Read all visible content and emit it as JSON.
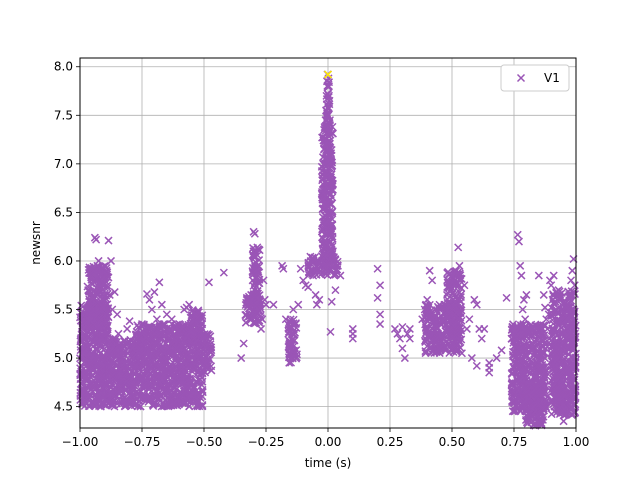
{
  "chart_data": {
    "type": "scatter",
    "title": "",
    "xlabel": "time (s)",
    "ylabel": "newsnr",
    "xlim": [
      -1.0,
      1.0
    ],
    "ylim": [
      4.28,
      8.09
    ],
    "xticks": [
      -1.0,
      -0.75,
      -0.5,
      -0.25,
      0.0,
      0.25,
      0.5,
      0.75,
      1.0
    ],
    "xtick_labels": [
      "−1.00",
      "−0.75",
      "−0.50",
      "−0.25",
      "0.00",
      "0.25",
      "0.50",
      "0.75",
      "1.00"
    ],
    "yticks": [
      4.5,
      5.0,
      5.5,
      6.0,
      6.5,
      7.0,
      7.5,
      8.0
    ],
    "ytick_labels": [
      "4.5",
      "5.0",
      "5.5",
      "6.0",
      "6.5",
      "7.0",
      "7.5",
      "8.0"
    ],
    "grid": true,
    "legend_position": "top-right",
    "marker": "x",
    "series": [
      {
        "name": "V1",
        "color": "#9a55b6",
        "points": [
          [
            -1.0,
            5.42
          ],
          [
            -0.99,
            5.3
          ],
          [
            -0.98,
            5.15
          ],
          [
            -0.975,
            4.8
          ],
          [
            -0.97,
            5.5
          ],
          [
            -0.965,
            5.05
          ],
          [
            -0.96,
            4.7
          ],
          [
            -0.955,
            5.85
          ],
          [
            -0.95,
            5.6
          ],
          [
            -0.945,
            5.9
          ],
          [
            -0.94,
            6.24
          ],
          [
            -0.935,
            6.22
          ],
          [
            -0.93,
            5.95
          ],
          [
            -0.925,
            6.0
          ],
          [
            -0.92,
            5.7
          ],
          [
            -0.915,
            5.4
          ],
          [
            -0.91,
            5.2
          ],
          [
            -0.905,
            5.77
          ],
          [
            -0.9,
            5.65
          ],
          [
            -0.895,
            5.45
          ],
          [
            -0.89,
            5.25
          ],
          [
            -0.885,
            6.21
          ],
          [
            -0.88,
            5.65
          ],
          [
            -0.875,
            6.0
          ],
          [
            -0.87,
            5.5
          ],
          [
            -0.865,
            5.2
          ],
          [
            -0.86,
            5.68
          ],
          [
            -0.855,
            5.1
          ],
          [
            -0.85,
            5.45
          ],
          [
            -0.845,
            5.25
          ],
          [
            -0.84,
            5.05
          ],
          [
            -0.83,
            4.9
          ],
          [
            -0.82,
            4.95
          ],
          [
            -0.81,
            5.3
          ],
          [
            -0.8,
            5.38
          ],
          [
            -0.79,
            5.1
          ],
          [
            -0.78,
            4.85
          ],
          [
            -0.77,
            5.2
          ],
          [
            -0.76,
            4.9
          ],
          [
            -0.75,
            5.35
          ],
          [
            -0.74,
            5.3
          ],
          [
            -0.73,
            5.66
          ],
          [
            -0.72,
            5.6
          ],
          [
            -0.71,
            5.5
          ],
          [
            -0.7,
            5.68
          ],
          [
            -0.69,
            5.4
          ],
          [
            -0.68,
            5.78
          ],
          [
            -0.67,
            5.55
          ],
          [
            -0.66,
            5.35
          ],
          [
            -0.65,
            5.45
          ],
          [
            -0.64,
            5.25
          ],
          [
            -0.63,
            5.4
          ],
          [
            -0.62,
            5.2
          ],
          [
            -0.61,
            5.1
          ],
          [
            -0.6,
            5.35
          ],
          [
            -0.59,
            5.3
          ],
          [
            -0.58,
            5.5
          ],
          [
            -0.57,
            5.52
          ],
          [
            -0.56,
            5.55
          ],
          [
            -0.55,
            5.3
          ],
          [
            -0.54,
            5.2
          ],
          [
            -0.53,
            5.1
          ],
          [
            -0.52,
            5.43
          ],
          [
            -0.51,
            5.35
          ],
          [
            -0.505,
            5.2
          ],
          [
            -0.5,
            5.05
          ],
          [
            -0.495,
            4.95
          ],
          [
            -0.49,
            4.9
          ],
          [
            -0.48,
            5.78
          ],
          [
            -0.42,
            5.88
          ],
          [
            -0.35,
            5.0
          ],
          [
            -0.34,
            5.15
          ],
          [
            -0.33,
            5.57
          ],
          [
            -0.32,
            5.55
          ],
          [
            -0.31,
            5.65
          ],
          [
            -0.305,
            5.45
          ],
          [
            -0.3,
            6.3
          ],
          [
            -0.295,
            6.28
          ],
          [
            -0.29,
            5.9
          ],
          [
            -0.285,
            6.14
          ],
          [
            -0.28,
            5.5
          ],
          [
            -0.275,
            5.6
          ],
          [
            -0.27,
            5.3
          ],
          [
            -0.265,
            5.4
          ],
          [
            -0.26,
            5.8
          ],
          [
            -0.255,
            5.6
          ],
          [
            -0.25,
            5.55
          ],
          [
            -0.22,
            5.55
          ],
          [
            -0.185,
            5.95
          ],
          [
            -0.18,
            5.92
          ],
          [
            -0.17,
            5.4
          ],
          [
            -0.16,
            5.25
          ],
          [
            -0.155,
            5.15
          ],
          [
            -0.15,
            5.0
          ],
          [
            -0.145,
            5.35
          ],
          [
            -0.14,
            5.5
          ],
          [
            -0.13,
            5.35
          ],
          [
            -0.12,
            5.55
          ],
          [
            -0.11,
            5.92
          ],
          [
            -0.1,
            5.8
          ],
          [
            -0.09,
            5.75
          ],
          [
            -0.08,
            5.73
          ],
          [
            -0.07,
            5.9
          ],
          [
            -0.06,
            5.85
          ],
          [
            -0.05,
            5.65
          ],
          [
            -0.045,
            5.55
          ],
          [
            -0.035,
            5.6
          ],
          [
            -0.03,
            5.9
          ],
          [
            -0.025,
            6.05
          ],
          [
            -0.02,
            6.4
          ],
          [
            -0.018,
            6.7
          ],
          [
            -0.015,
            6.95
          ],
          [
            -0.012,
            7.2
          ],
          [
            -0.01,
            7.45
          ],
          [
            -0.008,
            7.55
          ],
          [
            -0.006,
            7.7
          ],
          [
            -0.004,
            7.85
          ],
          [
            -0.002,
            7.92
          ],
          [
            0.0,
            7.92
          ],
          [
            0.002,
            7.88
          ],
          [
            0.004,
            7.8
          ],
          [
            0.006,
            7.65
          ],
          [
            0.008,
            7.45
          ],
          [
            0.01,
            7.3
          ],
          [
            0.012,
            7.05
          ],
          [
            0.014,
            6.8
          ],
          [
            0.016,
            6.5
          ],
          [
            0.018,
            6.3
          ],
          [
            0.02,
            6.1
          ],
          [
            0.025,
            5.95
          ],
          [
            0.03,
            5.9
          ],
          [
            0.04,
            5.95
          ],
          [
            0.05,
            5.85
          ],
          [
            0.01,
            5.27
          ],
          [
            0.015,
            5.58
          ],
          [
            0.03,
            5.7
          ],
          [
            0.1,
            5.3
          ],
          [
            0.1,
            5.2
          ],
          [
            0.1,
            5.25
          ],
          [
            0.2,
            5.92
          ],
          [
            0.21,
            5.75
          ],
          [
            0.2,
            5.62
          ],
          [
            0.21,
            5.45
          ],
          [
            0.21,
            5.35
          ],
          [
            0.27,
            5.3
          ],
          [
            0.28,
            5.25
          ],
          [
            0.29,
            5.2
          ],
          [
            0.3,
            5.1
          ],
          [
            0.31,
            5.0
          ],
          [
            0.3,
            5.32
          ],
          [
            0.33,
            5.3
          ],
          [
            0.32,
            5.25
          ],
          [
            0.33,
            5.2
          ],
          [
            0.38,
            5.4
          ],
          [
            0.39,
            5.5
          ],
          [
            0.4,
            5.6
          ],
          [
            0.41,
            5.9
          ],
          [
            0.42,
            5.8
          ],
          [
            0.43,
            5.5
          ],
          [
            0.44,
            5.3
          ],
          [
            0.45,
            5.1
          ],
          [
            0.46,
            5.2
          ],
          [
            0.47,
            5.4
          ],
          [
            0.48,
            5.65
          ],
          [
            0.49,
            5.75
          ],
          [
            0.5,
            5.85
          ],
          [
            0.505,
            5.6
          ],
          [
            0.51,
            5.45
          ],
          [
            0.515,
            5.3
          ],
          [
            0.52,
            5.25
          ],
          [
            0.525,
            6.14
          ],
          [
            0.53,
            5.95
          ],
          [
            0.54,
            5.05
          ],
          [
            0.55,
            5.75
          ],
          [
            0.56,
            5.3
          ],
          [
            0.57,
            5.4
          ],
          [
            0.58,
            5.0
          ],
          [
            0.59,
            5.6
          ],
          [
            0.6,
            5.55
          ],
          [
            0.61,
            5.3
          ],
          [
            0.62,
            5.2
          ],
          [
            0.63,
            5.3
          ],
          [
            0.6,
            4.92
          ],
          [
            0.65,
            4.85
          ],
          [
            0.65,
            4.9
          ],
          [
            0.65,
            4.95
          ],
          [
            0.68,
            5.0
          ],
          [
            0.7,
            5.08
          ],
          [
            0.72,
            5.62
          ],
          [
            0.74,
            5.2
          ],
          [
            0.745,
            5.25
          ],
          [
            0.75,
            5.3
          ],
          [
            0.76,
            4.92
          ],
          [
            0.765,
            6.27
          ],
          [
            0.77,
            6.2
          ],
          [
            0.775,
            5.95
          ],
          [
            0.78,
            5.85
          ],
          [
            0.785,
            5.5
          ],
          [
            0.79,
            5.6
          ],
          [
            0.795,
            5.4
          ],
          [
            0.8,
            5.65
          ],
          [
            0.81,
            5.3
          ],
          [
            0.82,
            4.6
          ],
          [
            0.83,
            4.5
          ],
          [
            0.84,
            4.4
          ],
          [
            0.85,
            5.85
          ],
          [
            0.86,
            4.9
          ],
          [
            0.87,
            5.65
          ],
          [
            0.875,
            5.52
          ],
          [
            0.88,
            5.4
          ],
          [
            0.885,
            5.3
          ],
          [
            0.89,
            5.45
          ],
          [
            0.895,
            5.8
          ],
          [
            0.9,
            5.75
          ],
          [
            0.91,
            5.85
          ],
          [
            0.92,
            5.5
          ],
          [
            0.925,
            5.35
          ],
          [
            0.93,
            5.1
          ],
          [
            0.94,
            4.6
          ],
          [
            0.95,
            4.35
          ],
          [
            0.96,
            5.3
          ],
          [
            0.965,
            5.1
          ],
          [
            0.97,
            5.5
          ],
          [
            0.975,
            5.62
          ],
          [
            0.98,
            5.8
          ],
          [
            0.985,
            5.9
          ],
          [
            0.99,
            6.02
          ],
          [
            0.995,
            5.75
          ]
        ],
        "dense_bands": [
          {
            "x": [
              -1.0,
              -0.885
            ],
            "y": [
              4.5,
              5.55
            ]
          },
          {
            "x": [
              -0.885,
              -0.78
            ],
            "y": [
              4.5,
              5.2
            ]
          },
          {
            "x": [
              -0.78,
              -0.555
            ],
            "y": [
              4.5,
              5.35
            ]
          },
          {
            "x": [
              -0.555,
              -0.505
            ],
            "y": [
              4.5,
              5.5
            ]
          },
          {
            "x": [
              -0.97,
              -0.885
            ],
            "y": [
              5.3,
              5.95
            ]
          },
          {
            "x": [
              -0.505,
              -0.47
            ],
            "y": [
              4.85,
              5.25
            ]
          },
          {
            "x": [
              -0.335,
              -0.27
            ],
            "y": [
              5.35,
              5.65
            ]
          },
          {
            "x": [
              -0.305,
              -0.275
            ],
            "y": [
              5.55,
              6.15
            ]
          },
          {
            "x": [
              -0.16,
              -0.125
            ],
            "y": [
              4.95,
              5.4
            ]
          },
          {
            "x": [
              -0.08,
              0.04
            ],
            "y": [
              5.85,
              6.05
            ]
          },
          {
            "x": [
              -0.025,
              0.02
            ],
            "y": [
              6.0,
              7.4
            ]
          },
          {
            "x": [
              -0.008,
              0.006
            ],
            "y": [
              7.0,
              7.85
            ]
          },
          {
            "x": [
              0.39,
              0.54
            ],
            "y": [
              5.05,
              5.55
            ]
          },
          {
            "x": [
              0.48,
              0.54
            ],
            "y": [
              5.45,
              5.9
            ]
          },
          {
            "x": [
              0.74,
              0.88
            ],
            "y": [
              4.45,
              5.35
            ]
          },
          {
            "x": [
              0.79,
              0.87
            ],
            "y": [
              4.3,
              4.75
            ]
          },
          {
            "x": [
              0.9,
              1.0
            ],
            "y": [
              4.4,
              5.7
            ]
          }
        ]
      },
      {
        "name": "",
        "color": "#ffee00",
        "points": [
          [
            0.0,
            7.92
          ]
        ]
      }
    ]
  }
}
